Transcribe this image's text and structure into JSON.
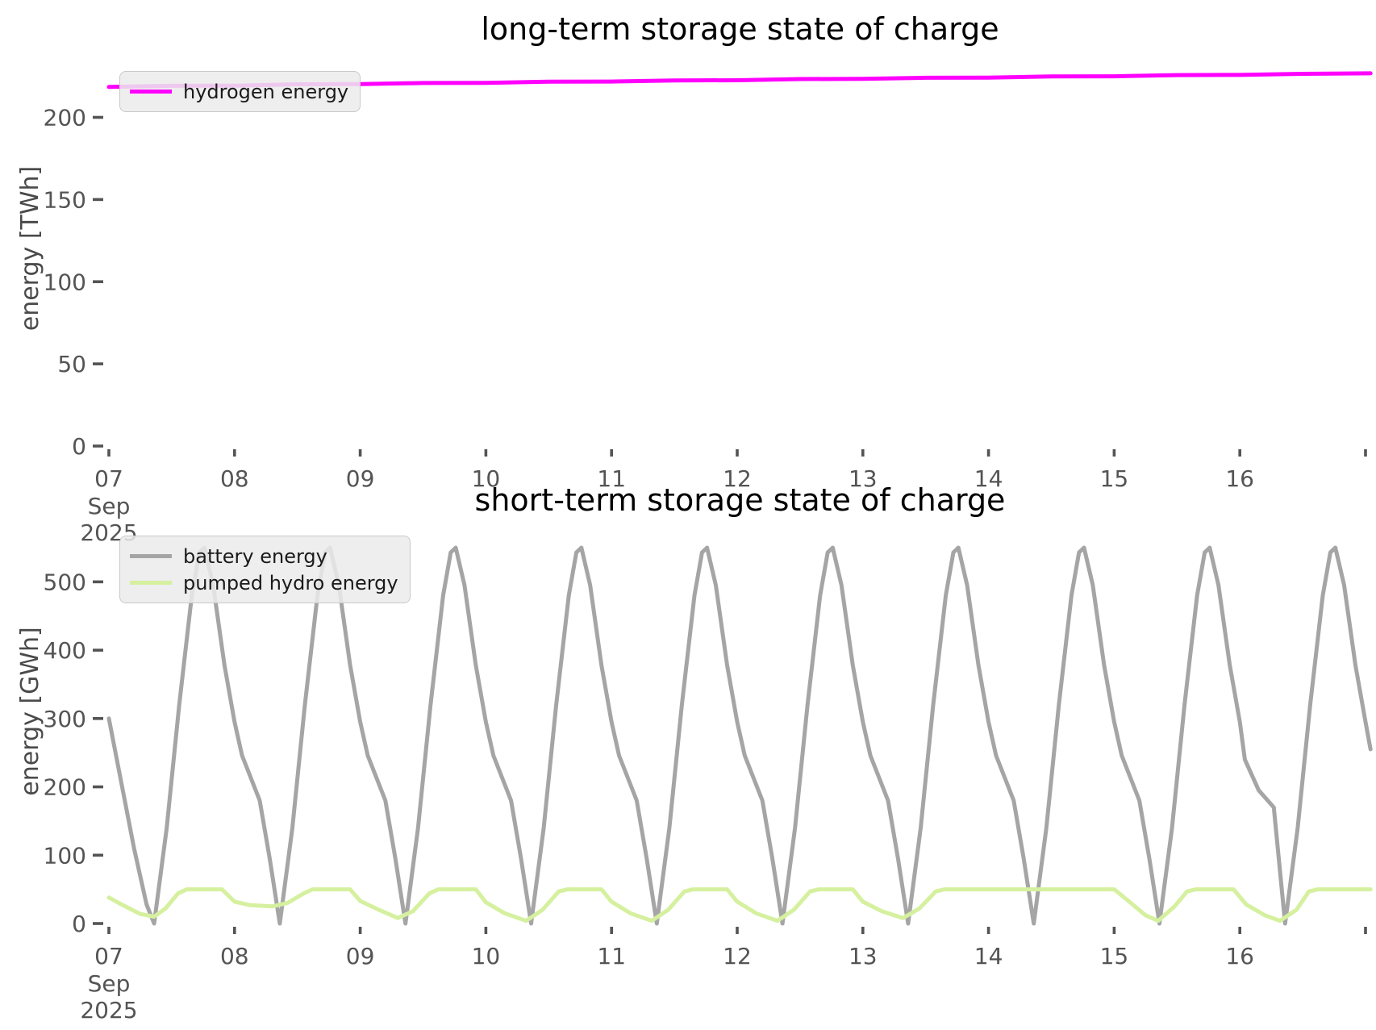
{
  "figure": {
    "background": "#ffffff",
    "tick_color": "#545454",
    "title_color": "#000000"
  },
  "chart_data": [
    {
      "type": "line",
      "title": "long-term storage state of charge",
      "ylabel": "energy [TWh]",
      "xlabel": "",
      "ylim": [
        0,
        240
      ],
      "xlim": [
        7,
        17.045
      ],
      "yticks": [
        0,
        50,
        100,
        150,
        200
      ],
      "xticks": [
        {
          "v": 7,
          "label": "07",
          "sub": [
            "Sep",
            "2025"
          ]
        },
        {
          "v": 8,
          "label": "08"
        },
        {
          "v": 9,
          "label": "09"
        },
        {
          "v": 10,
          "label": "10"
        },
        {
          "v": 11,
          "label": "11"
        },
        {
          "v": 12,
          "label": "12"
        },
        {
          "v": 13,
          "label": "13"
        },
        {
          "v": 14,
          "label": "14"
        },
        {
          "v": 15,
          "label": "15"
        },
        {
          "v": 16,
          "label": "16"
        },
        {
          "v": 17,
          "label": ""
        }
      ],
      "grid": false,
      "legend_position": "upper-left",
      "legend": [
        {
          "name": "hydrogen energy",
          "color": "#ff00ff"
        }
      ],
      "series": [
        {
          "name": "hydrogen energy",
          "color": "#ff00ff",
          "unit": "TWh",
          "points": [
            [
              7,
              218.5
            ],
            [
              7.5,
              219.2
            ],
            [
              8,
              219.3
            ],
            [
              8.5,
              220.1
            ],
            [
              9,
              220.2
            ],
            [
              9.5,
              220.9
            ],
            [
              10,
              221
            ],
            [
              10.5,
              221.7
            ],
            [
              11,
              221.8
            ],
            [
              11.5,
              222.5
            ],
            [
              12,
              222.6
            ],
            [
              12.5,
              223.3
            ],
            [
              13,
              223.4
            ],
            [
              13.5,
              224.1
            ],
            [
              14,
              224.2
            ],
            [
              14.5,
              224.9
            ],
            [
              15,
              225
            ],
            [
              15.5,
              225.7
            ],
            [
              16,
              225.8
            ],
            [
              16.5,
              226.5
            ],
            [
              17.04,
              226.8
            ]
          ]
        }
      ]
    },
    {
      "type": "line",
      "title": "short-term storage state of charge",
      "ylabel": "energy [GWh]",
      "xlabel": "",
      "ylim": [
        0,
        622
      ],
      "xlim": [
        7,
        17.045
      ],
      "yticks": [
        0,
        100,
        200,
        300,
        400,
        500
      ],
      "xticks": [
        {
          "v": 7,
          "label": "07",
          "sub": [
            "Sep",
            "2025"
          ]
        },
        {
          "v": 8,
          "label": "08"
        },
        {
          "v": 9,
          "label": "09"
        },
        {
          "v": 10,
          "label": "10"
        },
        {
          "v": 11,
          "label": "11"
        },
        {
          "v": 12,
          "label": "12"
        },
        {
          "v": 13,
          "label": "13"
        },
        {
          "v": 14,
          "label": "14"
        },
        {
          "v": 15,
          "label": "15"
        },
        {
          "v": 16,
          "label": "16"
        },
        {
          "v": 17,
          "label": ""
        }
      ],
      "grid": false,
      "legend_position": "upper-left",
      "legend": [
        {
          "name": "battery energy",
          "color": "#a5a5a5"
        },
        {
          "name": "pumped hydro energy",
          "color": "#d5f09e"
        }
      ],
      "series": [
        {
          "name": "battery energy",
          "color": "#a5a5a5",
          "unit": "GWh",
          "points": [
            [
              7,
              300
            ],
            [
              7.1,
              205
            ],
            [
              7.2,
              110
            ],
            [
              7.3,
              28
            ],
            [
              7.36,
              0
            ],
            [
              7.46,
              140
            ],
            [
              7.56,
              320
            ],
            [
              7.66,
              480
            ],
            [
              7.72,
              543
            ],
            [
              7.76,
              550
            ],
            [
              7.83,
              495
            ],
            [
              7.92,
              378
            ],
            [
              8,
              295
            ],
            [
              8.06,
              246
            ],
            [
              8.2,
              180
            ],
            [
              8.28,
              95
            ],
            [
              8.36,
              0
            ],
            [
              8.46,
              140
            ],
            [
              8.56,
              320
            ],
            [
              8.66,
              480
            ],
            [
              8.72,
              543
            ],
            [
              8.76,
              550
            ],
            [
              8.83,
              495
            ],
            [
              8.92,
              378
            ],
            [
              9,
              295
            ],
            [
              9.06,
              246
            ],
            [
              9.2,
              180
            ],
            [
              9.28,
              95
            ],
            [
              9.36,
              0
            ],
            [
              9.46,
              140
            ],
            [
              9.56,
              320
            ],
            [
              9.66,
              480
            ],
            [
              9.72,
              543
            ],
            [
              9.76,
              550
            ],
            [
              9.83,
              495
            ],
            [
              9.92,
              378
            ],
            [
              10,
              295
            ],
            [
              10.06,
              246
            ],
            [
              10.2,
              180
            ],
            [
              10.28,
              95
            ],
            [
              10.36,
              0
            ],
            [
              10.46,
              140
            ],
            [
              10.56,
              320
            ],
            [
              10.66,
              480
            ],
            [
              10.72,
              543
            ],
            [
              10.76,
              550
            ],
            [
              10.83,
              495
            ],
            [
              10.92,
              378
            ],
            [
              11,
              295
            ],
            [
              11.06,
              246
            ],
            [
              11.2,
              180
            ],
            [
              11.28,
              95
            ],
            [
              11.36,
              0
            ],
            [
              11.46,
              140
            ],
            [
              11.56,
              320
            ],
            [
              11.66,
              480
            ],
            [
              11.72,
              543
            ],
            [
              11.76,
              550
            ],
            [
              11.83,
              495
            ],
            [
              11.92,
              378
            ],
            [
              12,
              295
            ],
            [
              12.06,
              246
            ],
            [
              12.2,
              180
            ],
            [
              12.28,
              95
            ],
            [
              12.36,
              0
            ],
            [
              12.46,
              140
            ],
            [
              12.56,
              320
            ],
            [
              12.66,
              480
            ],
            [
              12.72,
              543
            ],
            [
              12.76,
              550
            ],
            [
              12.83,
              495
            ],
            [
              12.92,
              378
            ],
            [
              13,
              295
            ],
            [
              13.06,
              246
            ],
            [
              13.2,
              180
            ],
            [
              13.28,
              95
            ],
            [
              13.36,
              0
            ],
            [
              13.46,
              140
            ],
            [
              13.56,
              320
            ],
            [
              13.66,
              480
            ],
            [
              13.72,
              543
            ],
            [
              13.76,
              550
            ],
            [
              13.83,
              495
            ],
            [
              13.92,
              378
            ],
            [
              14,
              295
            ],
            [
              14.06,
              246
            ],
            [
              14.2,
              180
            ],
            [
              14.28,
              95
            ],
            [
              14.36,
              0
            ],
            [
              14.46,
              140
            ],
            [
              14.56,
              320
            ],
            [
              14.66,
              480
            ],
            [
              14.72,
              543
            ],
            [
              14.76,
              550
            ],
            [
              14.83,
              495
            ],
            [
              14.92,
              378
            ],
            [
              15,
              295
            ],
            [
              15.06,
              246
            ],
            [
              15.2,
              180
            ],
            [
              15.28,
              95
            ],
            [
              15.36,
              0
            ],
            [
              15.46,
              140
            ],
            [
              15.56,
              320
            ],
            [
              15.66,
              480
            ],
            [
              15.72,
              543
            ],
            [
              15.76,
              550
            ],
            [
              15.83,
              495
            ],
            [
              15.92,
              378
            ],
            [
              16,
              295
            ],
            [
              16.04,
              240
            ],
            [
              16.15,
              195
            ],
            [
              16.27,
              170
            ],
            [
              16.36,
              0
            ],
            [
              16.46,
              140
            ],
            [
              16.56,
              320
            ],
            [
              16.66,
              480
            ],
            [
              16.72,
              543
            ],
            [
              16.76,
              550
            ],
            [
              16.83,
              495
            ],
            [
              16.92,
              378
            ],
            [
              17,
              295
            ],
            [
              17.04,
              255
            ]
          ]
        },
        {
          "name": "pumped hydro energy",
          "color": "#d5f09e",
          "unit": "GWh",
          "points": [
            [
              7,
              38
            ],
            [
              7.1,
              28
            ],
            [
              7.25,
              14
            ],
            [
              7.36,
              10
            ],
            [
              7.45,
              22
            ],
            [
              7.55,
              44
            ],
            [
              7.62,
              50
            ],
            [
              7.9,
              50
            ],
            [
              8,
              32
            ],
            [
              8.12,
              27
            ],
            [
              8.3,
              25
            ],
            [
              8.42,
              30
            ],
            [
              8.55,
              44
            ],
            [
              8.62,
              50
            ],
            [
              8.92,
              50
            ],
            [
              9,
              33
            ],
            [
              9.15,
              20
            ],
            [
              9.3,
              8
            ],
            [
              9.42,
              18
            ],
            [
              9.55,
              44
            ],
            [
              9.62,
              50
            ],
            [
              9.92,
              50
            ],
            [
              10,
              31
            ],
            [
              10.15,
              15
            ],
            [
              10.32,
              4
            ],
            [
              10.45,
              20
            ],
            [
              10.58,
              47
            ],
            [
              10.65,
              50
            ],
            [
              10.92,
              50
            ],
            [
              11,
              32
            ],
            [
              11.15,
              15
            ],
            [
              11.32,
              4
            ],
            [
              11.45,
              20
            ],
            [
              11.58,
              47
            ],
            [
              11.65,
              50
            ],
            [
              11.92,
              50
            ],
            [
              12,
              32
            ],
            [
              12.15,
              15
            ],
            [
              12.32,
              4
            ],
            [
              12.45,
              20
            ],
            [
              12.58,
              47
            ],
            [
              12.65,
              50
            ],
            [
              12.92,
              50
            ],
            [
              13,
              32
            ],
            [
              13.15,
              18
            ],
            [
              13.32,
              8
            ],
            [
              13.45,
              22
            ],
            [
              13.58,
              47
            ],
            [
              13.65,
              50
            ],
            [
              13.95,
              50
            ],
            [
              14,
              50
            ],
            [
              15,
              50
            ],
            [
              15.1,
              35
            ],
            [
              15.25,
              12
            ],
            [
              15.35,
              4
            ],
            [
              15.48,
              25
            ],
            [
              15.58,
              47
            ],
            [
              15.65,
              50
            ],
            [
              15.95,
              50
            ],
            [
              16.05,
              28
            ],
            [
              16.2,
              12
            ],
            [
              16.32,
              4
            ],
            [
              16.45,
              20
            ],
            [
              16.55,
              47
            ],
            [
              16.62,
              50
            ],
            [
              17.04,
              50
            ]
          ]
        }
      ]
    }
  ]
}
